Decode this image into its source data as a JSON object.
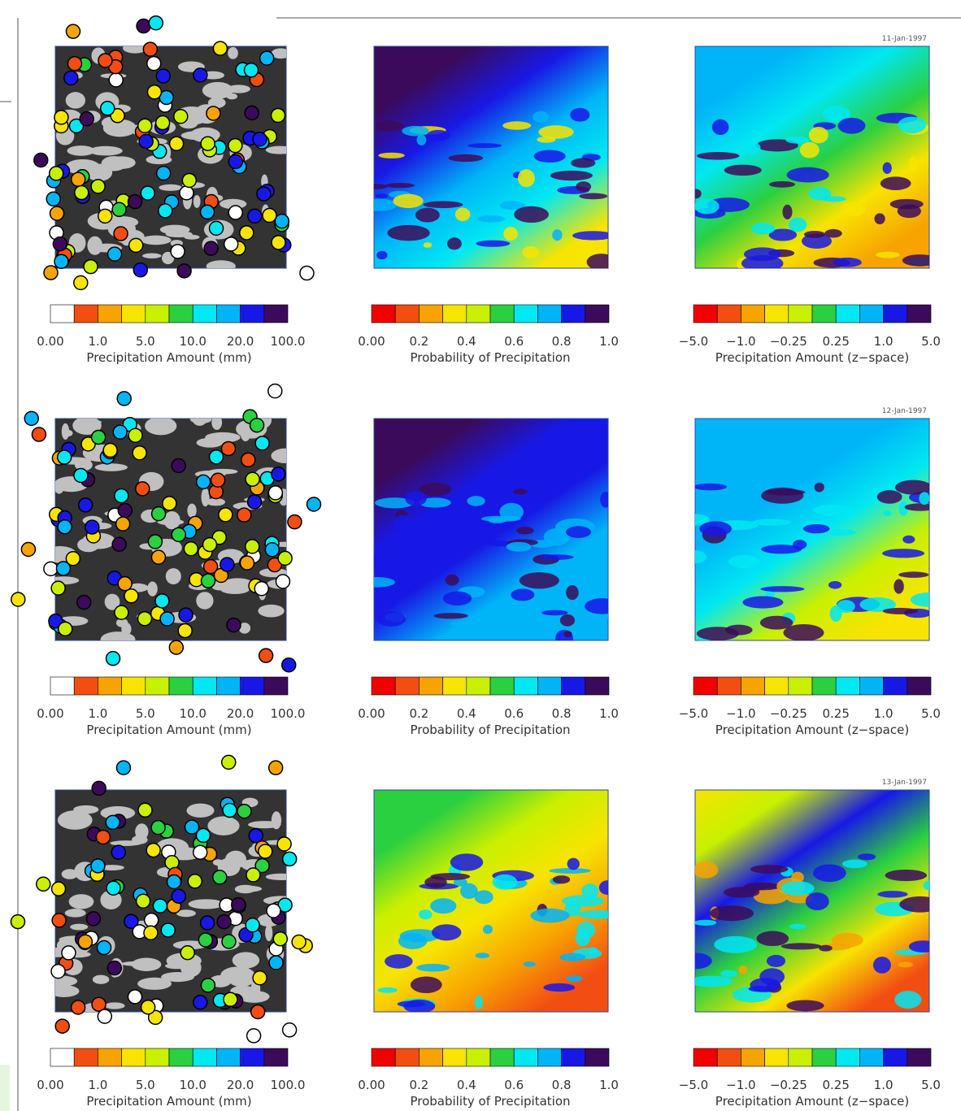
{
  "figure": {
    "rows": [
      {
        "date": "11-Jan-1997",
        "panels": [
          {
            "title": "Precipitation Amount (mm)",
            "ticks": [
              "0.00",
              "1.0",
              "5.0",
              "10.0",
              "20.0",
              "100.0"
            ],
            "colors": [
              "#ffffff",
              "#f24e12",
              "#f7a300",
              "#f7e400",
              "#c8f000",
              "#2ad040",
              "#00e8f2",
              "#00b4f8",
              "#1818e6",
              "#3c0a5a"
            ]
          },
          {
            "title": "Probability of Precipitation",
            "ticks": [
              "0.00",
              "0.2",
              "0.4",
              "0.6",
              "0.8",
              "1.0"
            ],
            "colors": [
              "#f20000",
              "#f24e12",
              "#f7a300",
              "#f7e400",
              "#c8f000",
              "#2ad040",
              "#00e8f2",
              "#00b4f8",
              "#1818e6",
              "#3c0a5a"
            ]
          },
          {
            "title": "Precipitation Amount (z−space)",
            "ticks": [
              "−5.0",
              "−1.0",
              "−0.25",
              "0.25",
              "1.0",
              "5.0"
            ],
            "colors": [
              "#f20000",
              "#f24e12",
              "#f7a300",
              "#f7e400",
              "#c8f000",
              "#2ad040",
              "#00e8f2",
              "#00b4f8",
              "#1818e6",
              "#3c0a5a"
            ]
          }
        ]
      },
      {
        "date": "12-Jan-1997",
        "panels": [
          {
            "title": "Precipitation Amount (mm)",
            "ticks": [
              "0.00",
              "1.0",
              "5.0",
              "10.0",
              "20.0",
              "100.0"
            ],
            "colors": [
              "#ffffff",
              "#f24e12",
              "#f7a300",
              "#f7e400",
              "#c8f000",
              "#2ad040",
              "#00e8f2",
              "#00b4f8",
              "#1818e6",
              "#3c0a5a"
            ]
          },
          {
            "title": "Probability of Precipitation",
            "ticks": [
              "0.00",
              "0.2",
              "0.4",
              "0.6",
              "0.8",
              "1.0"
            ],
            "colors": [
              "#f20000",
              "#f24e12",
              "#f7a300",
              "#f7e400",
              "#c8f000",
              "#2ad040",
              "#00e8f2",
              "#00b4f8",
              "#1818e6",
              "#3c0a5a"
            ]
          },
          {
            "title": "Precipitation Amount (z−space)",
            "ticks": [
              "−5.0",
              "−1.0",
              "−0.25",
              "0.25",
              "1.0",
              "5.0"
            ],
            "colors": [
              "#f20000",
              "#f24e12",
              "#f7a300",
              "#f7e400",
              "#c8f000",
              "#2ad040",
              "#00e8f2",
              "#00b4f8",
              "#1818e6",
              "#3c0a5a"
            ]
          }
        ]
      },
      {
        "date": "13-Jan-1997",
        "panels": [
          {
            "title": "Precipitation Amount (mm)",
            "ticks": [
              "0.00",
              "1.0",
              "5.0",
              "10.0",
              "20.0",
              "100.0"
            ],
            "colors": [
              "#ffffff",
              "#f24e12",
              "#f7a300",
              "#f7e400",
              "#c8f000",
              "#2ad040",
              "#00e8f2",
              "#00b4f8",
              "#1818e6",
              "#3c0a5a"
            ]
          },
          {
            "title": "Probability of Precipitation",
            "ticks": [
              "0.00",
              "0.2",
              "0.4",
              "0.6",
              "0.8",
              "1.0"
            ],
            "colors": [
              "#f20000",
              "#f24e12",
              "#f7a300",
              "#f7e400",
              "#c8f000",
              "#2ad040",
              "#00e8f2",
              "#00b4f8",
              "#1818e6",
              "#3c0a5a"
            ]
          },
          {
            "title": "Precipitation Amount (z−space)",
            "ticks": [
              "−5.0",
              "−1.0",
              "−0.25",
              "0.25",
              "1.0",
              "5.0"
            ],
            "colors": [
              "#f20000",
              "#f24e12",
              "#f7a300",
              "#f7e400",
              "#c8f000",
              "#2ad040",
              "#00e8f2",
              "#00b4f8",
              "#1818e6",
              "#3c0a5a"
            ]
          }
        ]
      }
    ]
  }
}
